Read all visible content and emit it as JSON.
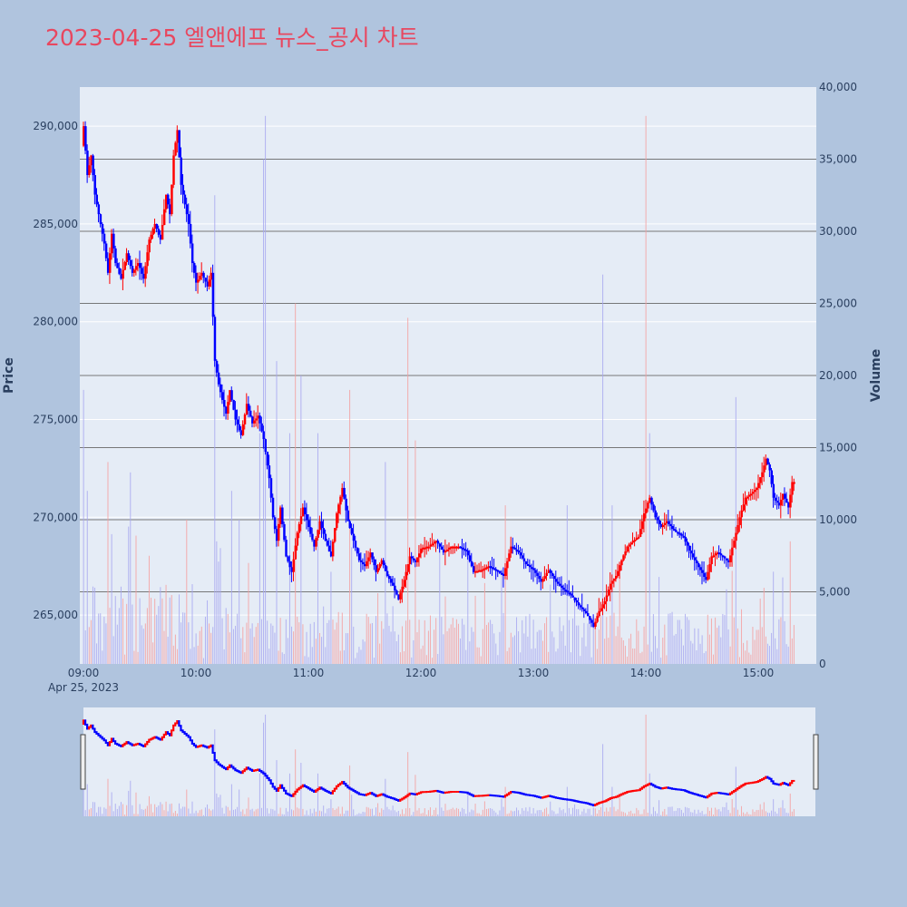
{
  "title": "2023-04-25 엘앤에프 뉴스_공시 차트",
  "chart_data": {
    "type": "candlestick",
    "title": "2023-04-25 엘앤에프 뉴스_공시 차트",
    "date_label": "Apr 25, 2023",
    "y_label": "Price",
    "y2_label": "Volume",
    "y_range": [
      262500,
      292000
    ],
    "y2_range": [
      0,
      40000
    ],
    "y_ticks": [
      265000,
      270000,
      275000,
      280000,
      285000,
      290000
    ],
    "y_tick_labels": [
      "265,000",
      "270,000",
      "275,000",
      "280,000",
      "285,000",
      "290,000"
    ],
    "y2_ticks": [
      0,
      5000,
      10000,
      15000,
      20000,
      25000,
      30000,
      35000,
      40000
    ],
    "y2_tick_labels": [
      "0",
      "5,000",
      "10,000",
      "15,000",
      "20,000",
      "25,000",
      "30,000",
      "35,000",
      "40,000"
    ],
    "x_ticks": [
      "09:00",
      "10:00",
      "11:00",
      "12:00",
      "13:00",
      "14:00",
      "15:00"
    ],
    "x_range_minutes": [
      540,
      930
    ],
    "up_color": "#ff0000",
    "down_color": "#0000ff",
    "price_path": [
      [
        "09:00",
        289000
      ],
      [
        "09:01",
        290000
      ],
      [
        "09:03",
        287500
      ],
      [
        "09:05",
        288500
      ],
      [
        "09:07",
        286500
      ],
      [
        "09:10",
        285000
      ],
      [
        "09:12",
        284000
      ],
      [
        "09:14",
        282500
      ],
      [
        "09:16",
        284500
      ],
      [
        "09:18",
        283000
      ],
      [
        "09:21",
        282200
      ],
      [
        "09:24",
        283500
      ],
      [
        "09:27",
        282500
      ],
      [
        "09:30",
        283000
      ],
      [
        "09:33",
        282200
      ],
      [
        "09:36",
        284200
      ],
      [
        "09:39",
        285000
      ],
      [
        "09:42",
        284200
      ],
      [
        "09:45",
        286500
      ],
      [
        "09:47",
        285500
      ],
      [
        "09:49",
        288500
      ],
      [
        "09:51",
        289800
      ],
      [
        "09:53",
        287000
      ],
      [
        "09:55",
        286000
      ],
      [
        "09:57",
        285000
      ],
      [
        "09:59",
        283000
      ],
      [
        "10:01",
        282000
      ],
      [
        "10:04",
        282500
      ],
      [
        "10:07",
        281800
      ],
      [
        "10:09",
        282500
      ],
      [
        "10:11",
        278000
      ],
      [
        "10:13",
        276800
      ],
      [
        "10:15",
        276000
      ],
      [
        "10:17",
        275300
      ],
      [
        "10:19",
        276500
      ],
      [
        "10:22",
        275000
      ],
      [
        "10:25",
        274200
      ],
      [
        "10:28",
        275800
      ],
      [
        "10:31",
        274800
      ],
      [
        "10:34",
        275200
      ],
      [
        "10:37",
        274000
      ],
      [
        "10:40",
        272000
      ],
      [
        "10:42",
        270000
      ],
      [
        "10:44",
        268800
      ],
      [
        "10:46",
        270500
      ],
      [
        "10:49",
        268000
      ],
      [
        "10:52",
        267200
      ],
      [
        "10:55",
        269200
      ],
      [
        "10:58",
        270500
      ],
      [
        "11:01",
        269500
      ],
      [
        "11:04",
        268500
      ],
      [
        "11:07",
        269800
      ],
      [
        "11:10",
        268800
      ],
      [
        "11:13",
        268000
      ],
      [
        "11:16",
        270200
      ],
      [
        "11:19",
        271500
      ],
      [
        "11:22",
        269800
      ],
      [
        "11:25",
        268800
      ],
      [
        "11:28",
        267800
      ],
      [
        "11:31",
        267500
      ],
      [
        "11:34",
        268200
      ],
      [
        "11:37",
        267200
      ],
      [
        "11:40",
        267800
      ],
      [
        "11:43",
        267000
      ],
      [
        "11:46",
        266500
      ],
      [
        "11:49",
        265800
      ],
      [
        "11:52",
        266800
      ],
      [
        "11:55",
        268000
      ],
      [
        "11:58",
        267700
      ],
      [
        "12:01",
        268400
      ],
      [
        "12:05",
        268500
      ],
      [
        "12:09",
        268800
      ],
      [
        "12:13",
        268200
      ],
      [
        "12:17",
        268500
      ],
      [
        "12:21",
        268500
      ],
      [
        "12:25",
        268300
      ],
      [
        "12:29",
        267200
      ],
      [
        "12:33",
        267300
      ],
      [
        "12:37",
        267500
      ],
      [
        "12:41",
        267300
      ],
      [
        "12:45",
        267000
      ],
      [
        "12:49",
        268500
      ],
      [
        "12:53",
        268200
      ],
      [
        "12:57",
        267600
      ],
      [
        "13:01",
        267300
      ],
      [
        "13:05",
        266700
      ],
      [
        "13:09",
        267300
      ],
      [
        "13:13",
        266700
      ],
      [
        "13:17",
        266300
      ],
      [
        "13:21",
        266000
      ],
      [
        "13:25",
        265500
      ],
      [
        "13:29",
        265100
      ],
      [
        "13:33",
        264400
      ],
      [
        "13:36",
        265200
      ],
      [
        "13:39",
        265700
      ],
      [
        "13:42",
        266600
      ],
      [
        "13:45",
        267000
      ],
      [
        "13:48",
        267800
      ],
      [
        "13:51",
        268500
      ],
      [
        "13:54",
        268800
      ],
      [
        "13:57",
        269000
      ],
      [
        "14:00",
        270200
      ],
      [
        "14:03",
        271000
      ],
      [
        "14:06",
        270000
      ],
      [
        "14:09",
        269500
      ],
      [
        "14:12",
        269800
      ],
      [
        "14:15",
        269400
      ],
      [
        "14:18",
        269200
      ],
      [
        "14:21",
        269000
      ],
      [
        "14:24",
        268300
      ],
      [
        "14:27",
        267800
      ],
      [
        "14:30",
        267300
      ],
      [
        "14:33",
        266800
      ],
      [
        "14:36",
        268000
      ],
      [
        "14:39",
        268200
      ],
      [
        "14:42",
        268000
      ],
      [
        "14:45",
        267700
      ],
      [
        "14:48",
        268800
      ],
      [
        "14:51",
        270000
      ],
      [
        "14:54",
        271000
      ],
      [
        "14:57",
        271200
      ],
      [
        "15:00",
        271500
      ],
      [
        "15:03",
        272300
      ],
      [
        "15:05",
        273000
      ],
      [
        "15:07",
        272400
      ],
      [
        "15:09",
        271000
      ],
      [
        "15:12",
        270600
      ],
      [
        "15:14",
        271200
      ],
      [
        "15:17",
        270500
      ],
      [
        "15:19",
        271800
      ]
    ],
    "volume_bars": [
      [
        "09:00",
        19000,
        "down"
      ],
      [
        "09:02",
        12000,
        "down"
      ],
      [
        "09:13",
        14000,
        "up"
      ],
      [
        "09:15",
        9000,
        "down"
      ],
      [
        "09:35",
        7500,
        "up"
      ],
      [
        "09:55",
        10000,
        "up"
      ],
      [
        "10:10",
        32500,
        "down"
      ],
      [
        "10:11",
        8500,
        "down"
      ],
      [
        "10:19",
        12000,
        "down"
      ],
      [
        "10:23",
        10000,
        "down"
      ],
      [
        "10:28",
        7000,
        "up"
      ],
      [
        "10:34",
        16000,
        "down"
      ],
      [
        "10:36",
        35000,
        "down"
      ],
      [
        "10:37",
        38000,
        "down"
      ],
      [
        "10:43",
        21000,
        "down"
      ],
      [
        "10:50",
        16000,
        "down"
      ],
      [
        "10:53",
        25000,
        "up"
      ],
      [
        "10:56",
        20000,
        "down"
      ],
      [
        "11:05",
        16000,
        "down"
      ],
      [
        "11:22",
        19000,
        "up"
      ],
      [
        "11:41",
        14000,
        "down"
      ],
      [
        "11:53",
        24000,
        "up"
      ],
      [
        "11:57",
        15500,
        "up"
      ],
      [
        "12:25",
        8000,
        "down"
      ],
      [
        "12:45",
        11000,
        "up"
      ],
      [
        "13:18",
        11000,
        "down"
      ],
      [
        "13:37",
        27000,
        "down"
      ],
      [
        "13:42",
        11000,
        "down"
      ],
      [
        "14:00",
        38000,
        "up"
      ],
      [
        "14:02",
        16000,
        "down"
      ],
      [
        "14:48",
        18500,
        "down"
      ],
      [
        "15:13",
        6000,
        "down"
      ],
      [
        "15:17",
        8500,
        "up"
      ],
      [
        "15:20",
        3000,
        "up"
      ]
    ]
  }
}
